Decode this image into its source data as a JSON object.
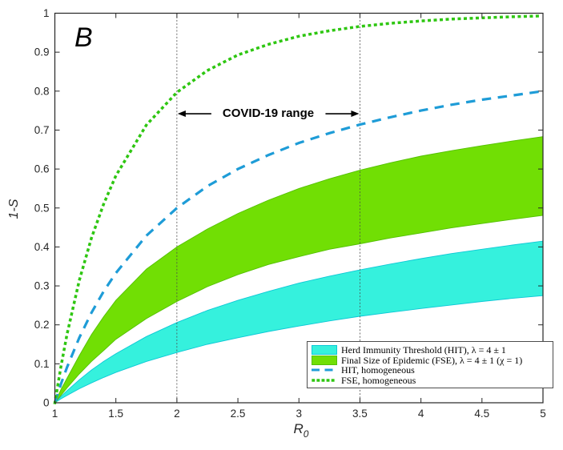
{
  "figure": {
    "panel_label": "B",
    "background": "#ffffff"
  },
  "chart_data": {
    "type": "line",
    "title": "",
    "xlabel_base": "R",
    "xlabel_sub": "0",
    "ylabel": "1-S",
    "xlim": [
      1,
      5
    ],
    "ylim": [
      0,
      1
    ],
    "grid": false,
    "axis_color": "#262626",
    "x_tick_labels": [
      "1",
      "1.5",
      "2",
      "2.5",
      "3",
      "3.5",
      "4",
      "4.5",
      "5"
    ],
    "x_tick_values": [
      1,
      1.5,
      2,
      2.5,
      3,
      3.5,
      4,
      4.5,
      5
    ],
    "y_tick_labels": [
      "0",
      "0.1",
      "0.2",
      "0.3",
      "0.4",
      "0.5",
      "0.6",
      "0.7",
      "0.8",
      "0.9",
      "1"
    ],
    "y_tick_values": [
      0,
      0.1,
      0.2,
      0.3,
      0.4,
      0.5,
      0.6,
      0.7,
      0.8,
      0.9,
      1
    ],
    "vlines": {
      "values": [
        2,
        3.5
      ],
      "color": "#4a4a4a"
    },
    "annotation": {
      "text": "COVID-19 range",
      "x_from": 2,
      "x_to": 3.5,
      "y": 0.742,
      "color": "#000000"
    },
    "x": [
      1,
      1.05,
      1.1,
      1.2,
      1.3,
      1.4,
      1.5,
      1.75,
      2,
      2.25,
      2.5,
      2.75,
      3,
      3.25,
      3.5,
      3.75,
      4,
      4.25,
      4.5,
      4.75,
      5
    ],
    "series": [
      {
        "name": "Herd Immunity Threshold (HIT), λ = 4 ± 1",
        "type": "band",
        "fill": "#35F1DD",
        "edge": "#0cc8d6",
        "upper": [
          0,
          0.016,
          0.031,
          0.059,
          0.084,
          0.106,
          0.126,
          0.17,
          0.206,
          0.237,
          0.263,
          0.286,
          0.307,
          0.325,
          0.341,
          0.356,
          0.37,
          0.383,
          0.394,
          0.405,
          0.415
        ],
        "lower": [
          0,
          0.01,
          0.019,
          0.036,
          0.051,
          0.065,
          0.078,
          0.106,
          0.129,
          0.15,
          0.167,
          0.183,
          0.197,
          0.21,
          0.222,
          0.232,
          0.242,
          0.251,
          0.26,
          0.268,
          0.275
        ]
      },
      {
        "name": "Final Size of Epidemic (FSE), λ = 4 ± 1 (χ = 1)",
        "type": "band",
        "fill": "#71DF04",
        "edge": "#53c000",
        "upper": [
          0,
          0.034,
          0.063,
          0.121,
          0.175,
          0.221,
          0.263,
          0.343,
          0.4,
          0.446,
          0.486,
          0.52,
          0.55,
          0.575,
          0.597,
          0.616,
          0.633,
          0.647,
          0.66,
          0.672,
          0.683
        ],
        "lower": [
          0,
          0.019,
          0.038,
          0.074,
          0.106,
          0.134,
          0.163,
          0.216,
          0.26,
          0.298,
          0.329,
          0.355,
          0.375,
          0.394,
          0.408,
          0.423,
          0.436,
          0.449,
          0.46,
          0.471,
          0.481
        ]
      },
      {
        "name": "HIT, homogeneous",
        "type": "line",
        "style": "dashed",
        "color": "#1E9CD7",
        "values": [
          0,
          0.048,
          0.091,
          0.167,
          0.231,
          0.286,
          0.333,
          0.429,
          0.5,
          0.556,
          0.6,
          0.636,
          0.667,
          0.692,
          0.714,
          0.733,
          0.75,
          0.765,
          0.778,
          0.789,
          0.8
        ]
      },
      {
        "name": "FSE, homogeneous",
        "type": "line",
        "style": "dotted",
        "color": "#2EC611",
        "values": [
          0,
          0.093,
          0.176,
          0.314,
          0.423,
          0.51,
          0.583,
          0.713,
          0.797,
          0.853,
          0.893,
          0.92,
          0.941,
          0.955,
          0.966,
          0.974,
          0.98,
          0.985,
          0.988,
          0.991,
          0.993
        ]
      }
    ],
    "legend": {
      "position": "bottom-right"
    }
  }
}
